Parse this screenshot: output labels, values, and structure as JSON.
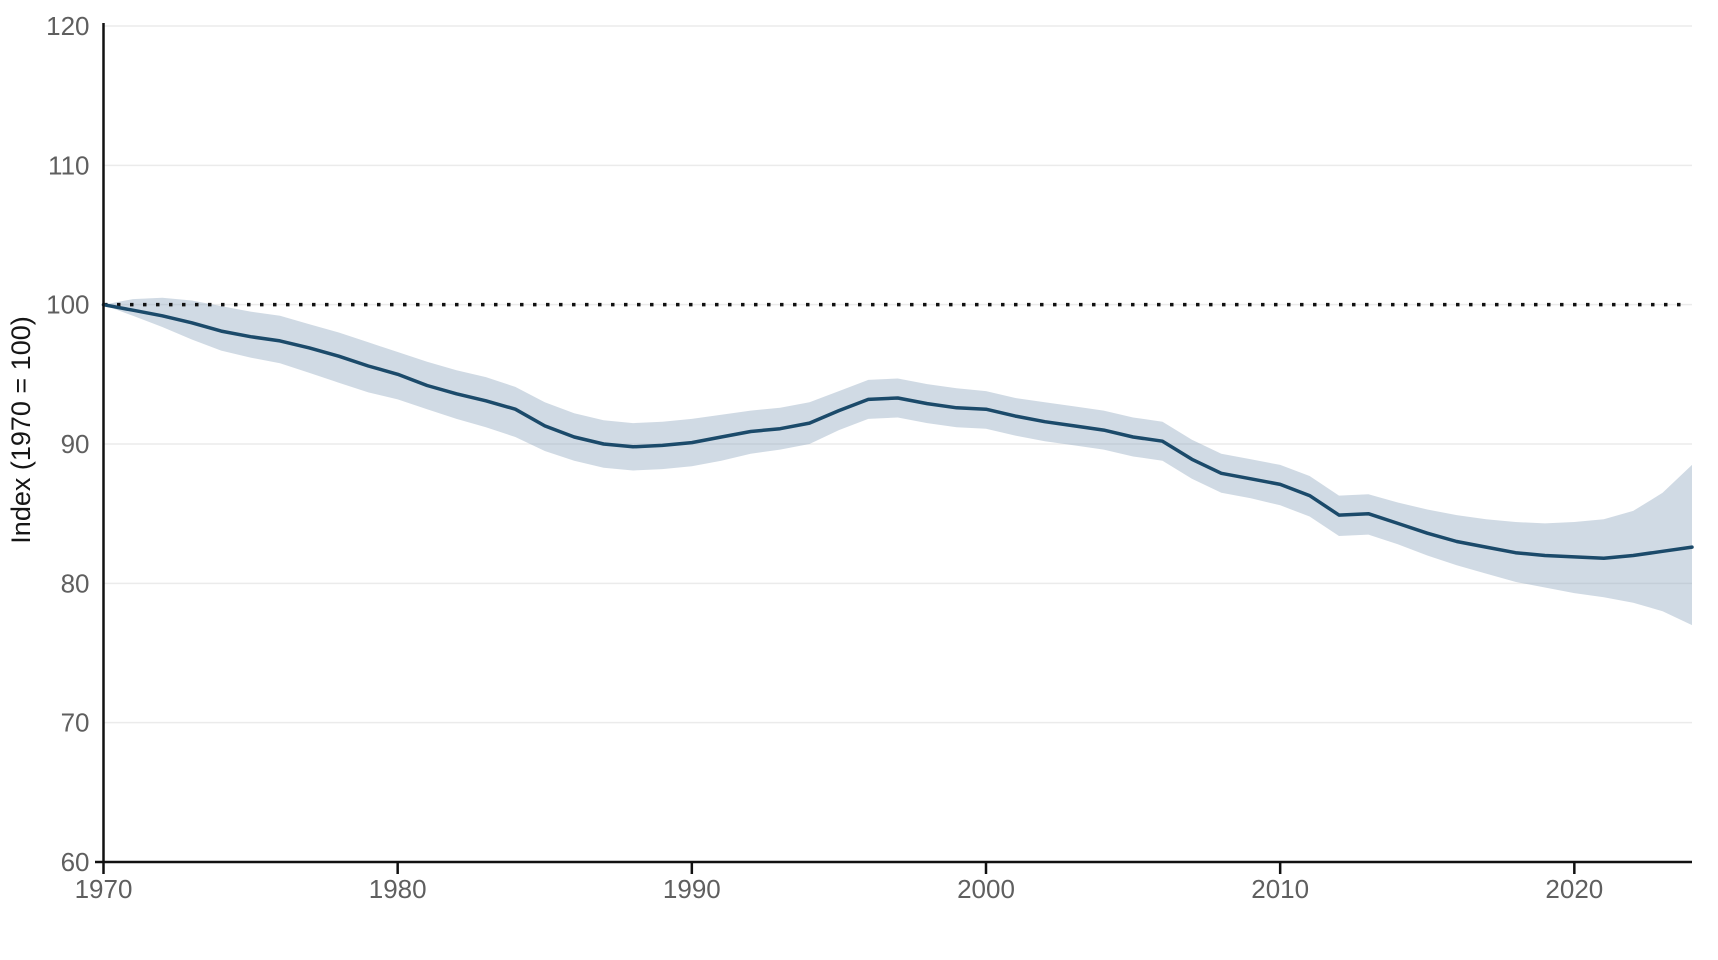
{
  "chart_data": {
    "type": "line",
    "title": "",
    "xlabel": "",
    "ylabel": "Index (1970 = 100)",
    "x": [
      1970,
      1971,
      1972,
      1973,
      1974,
      1975,
      1976,
      1977,
      1978,
      1979,
      1980,
      1981,
      1982,
      1983,
      1984,
      1985,
      1986,
      1987,
      1988,
      1989,
      1990,
      1991,
      1992,
      1993,
      1994,
      1995,
      1996,
      1997,
      1998,
      1999,
      2000,
      2001,
      2002,
      2003,
      2004,
      2005,
      2006,
      2007,
      2008,
      2009,
      2010,
      2011,
      2012,
      2013,
      2014,
      2015,
      2016,
      2017,
      2018,
      2019,
      2020,
      2021,
      2022,
      2023,
      2024
    ],
    "series": [
      {
        "name": "index",
        "role": "mean-line",
        "values": [
          100.0,
          99.6,
          99.2,
          98.7,
          98.1,
          97.7,
          97.4,
          96.9,
          96.3,
          95.6,
          95.0,
          94.2,
          93.6,
          93.1,
          92.5,
          91.3,
          90.5,
          90.0,
          89.8,
          89.9,
          90.1,
          90.5,
          90.9,
          91.1,
          91.5,
          92.4,
          93.2,
          93.3,
          92.9,
          92.6,
          92.5,
          92.0,
          91.6,
          91.3,
          91.0,
          90.5,
          90.2,
          88.9,
          87.9,
          87.5,
          87.1,
          86.3,
          84.9,
          85.0,
          84.3,
          83.6,
          83.0,
          82.6,
          82.2,
          82.0,
          81.9,
          81.8,
          82.0,
          82.3,
          82.6
        ]
      },
      {
        "name": "upper_bound",
        "role": "band-upper",
        "values": [
          100.0,
          100.4,
          100.5,
          100.3,
          99.9,
          99.5,
          99.2,
          98.6,
          98.0,
          97.3,
          96.6,
          95.9,
          95.3,
          94.8,
          94.1,
          93.0,
          92.2,
          91.7,
          91.5,
          91.6,
          91.8,
          92.1,
          92.4,
          92.6,
          93.0,
          93.8,
          94.6,
          94.7,
          94.3,
          94.0,
          93.8,
          93.3,
          93.0,
          92.7,
          92.4,
          91.9,
          91.6,
          90.3,
          89.3,
          88.9,
          88.5,
          87.7,
          86.3,
          86.4,
          85.8,
          85.3,
          84.9,
          84.6,
          84.4,
          84.3,
          84.4,
          84.6,
          85.2,
          86.5,
          88.5
        ]
      },
      {
        "name": "lower_bound",
        "role": "band-lower",
        "values": [
          100.0,
          99.2,
          98.4,
          97.5,
          96.7,
          96.2,
          95.8,
          95.1,
          94.4,
          93.7,
          93.2,
          92.5,
          91.8,
          91.2,
          90.5,
          89.5,
          88.8,
          88.3,
          88.1,
          88.2,
          88.4,
          88.8,
          89.3,
          89.6,
          90.0,
          91.0,
          91.8,
          91.9,
          91.5,
          91.2,
          91.1,
          90.6,
          90.2,
          89.9,
          89.6,
          89.1,
          88.8,
          87.5,
          86.5,
          86.1,
          85.6,
          84.8,
          83.4,
          83.5,
          82.8,
          82.0,
          81.3,
          80.7,
          80.1,
          79.7,
          79.3,
          79.0,
          78.6,
          78.0,
          77.0
        ]
      }
    ],
    "reference_line": {
      "value": 100,
      "style": "dotted"
    },
    "y_ticks": [
      "60",
      "70",
      "80",
      "90",
      "100",
      "110",
      "120"
    ],
    "y_tick_values": [
      60,
      70,
      80,
      90,
      100,
      110,
      120
    ],
    "x_ticks": [
      "1970",
      "1980",
      "1990",
      "2000",
      "2010",
      "2020"
    ],
    "x_tick_values": [
      1970,
      1980,
      1990,
      2000,
      2010,
      2020
    ],
    "ylim": [
      60,
      120
    ],
    "xlim": [
      1970,
      2024
    ],
    "grid": true,
    "legend_position": "none",
    "colors": {
      "line": "#1b4a6a",
      "band": "#8ea8be",
      "grid": "#ebebeb",
      "axis": "#111111",
      "tick_label": "#5f5f5f",
      "axis_label": "#161616",
      "reference": "#111111",
      "background": "#ffffff"
    }
  }
}
